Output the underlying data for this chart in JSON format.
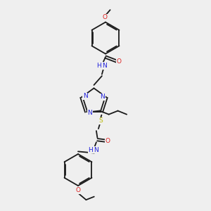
{
  "bg_color": "#efefef",
  "bond_color": "#1a1a1a",
  "N_color": "#2020dd",
  "O_color": "#dd2020",
  "S_color": "#b8b800",
  "font_size": 6.5,
  "linewidth": 1.3,
  "figsize": [
    3.0,
    3.0
  ],
  "dpi": 100,
  "xlim": [
    0,
    10
  ],
  "ylim": [
    0,
    10
  ]
}
